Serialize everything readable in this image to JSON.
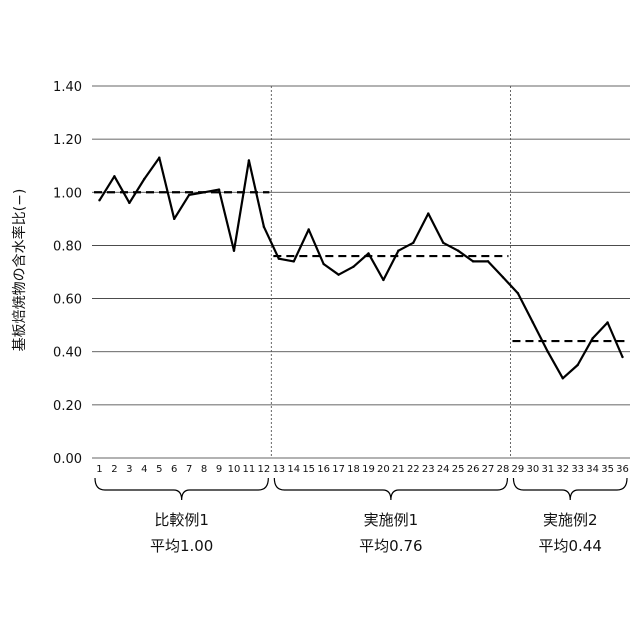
{
  "chart_data": {
    "type": "line",
    "ylabel": "基板焙焼物の含水率比(−)",
    "ylim": [
      0,
      1.4
    ],
    "yticks": [
      "0.00",
      "0.20",
      "0.40",
      "0.60",
      "0.80",
      "1.00",
      "1.20",
      "1.40"
    ],
    "x": [
      1,
      2,
      3,
      4,
      5,
      6,
      7,
      8,
      9,
      10,
      11,
      12,
      13,
      14,
      15,
      16,
      17,
      18,
      19,
      20,
      21,
      22,
      23,
      24,
      25,
      26,
      27,
      28,
      29,
      30,
      31,
      32,
      33,
      34,
      35,
      36
    ],
    "values": [
      0.97,
      1.06,
      0.96,
      1.05,
      1.13,
      0.9,
      0.99,
      1.0,
      1.01,
      0.78,
      1.12,
      0.87,
      0.75,
      0.74,
      0.86,
      0.73,
      0.69,
      0.72,
      0.77,
      0.67,
      0.78,
      0.81,
      0.92,
      0.81,
      0.78,
      0.74,
      0.74,
      0.68,
      0.62,
      0.51,
      0.4,
      0.3,
      0.35,
      0.45,
      0.51,
      0.38
    ],
    "grid": true,
    "groups": [
      {
        "name": "比較例1",
        "avg_label": "平均1.00",
        "avg": 1.0,
        "start": 1,
        "end": 12
      },
      {
        "name": "実施例1",
        "avg_label": "平均0.76",
        "avg": 0.76,
        "start": 13,
        "end": 28
      },
      {
        "name": "実施例2",
        "avg_label": "平均0.44",
        "avg": 0.44,
        "start": 29,
        "end": 36
      }
    ]
  }
}
